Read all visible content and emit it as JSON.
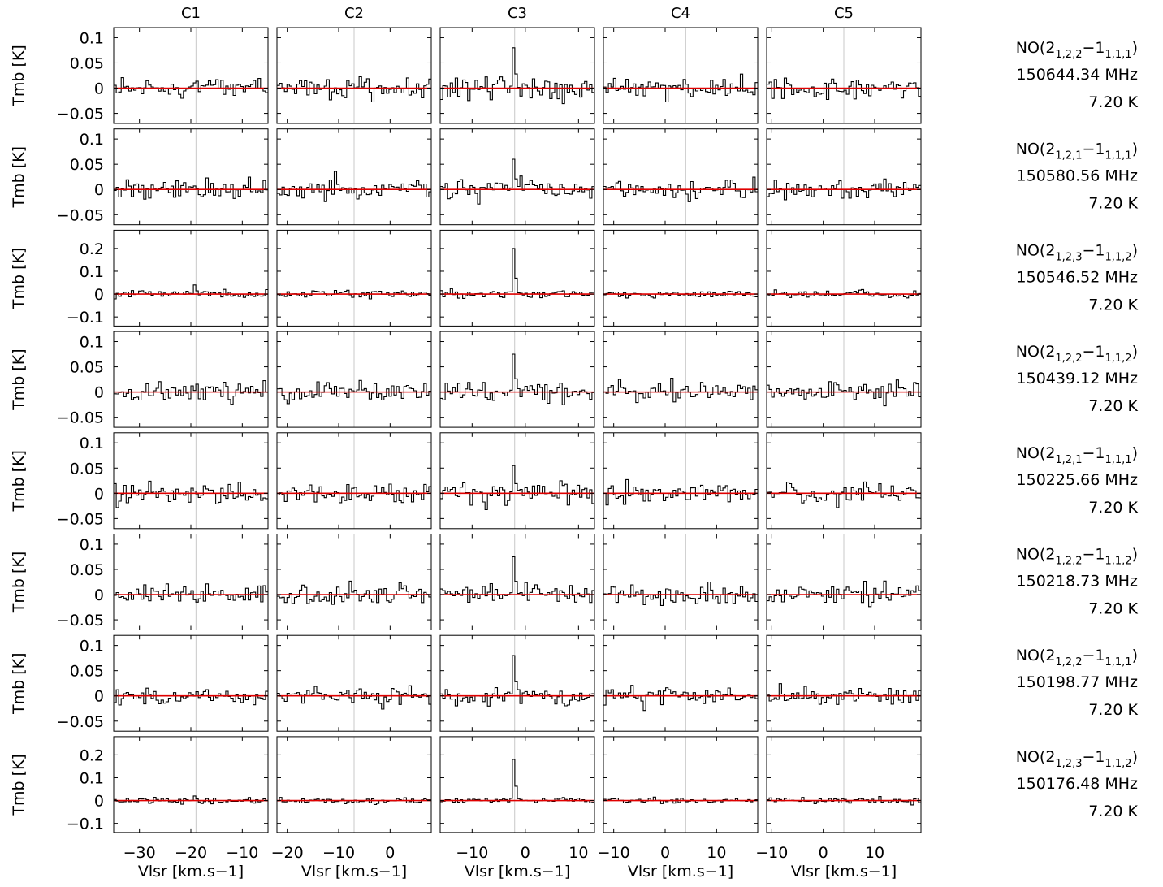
{
  "chart_data": {
    "type": "line",
    "style": "step-histogram spectra grid",
    "colors": {
      "spectrum": "#000000",
      "baseline": "#e00000",
      "marker": "#c8c8c8",
      "frame": "#000000"
    },
    "columns": [
      {
        "label": "C1",
        "xlim": [
          -35,
          -5
        ],
        "xticks": [
          -30,
          -20,
          -10
        ],
        "marker_v": -19
      },
      {
        "label": "C2",
        "xlim": [
          -22,
          8
        ],
        "xticks": [
          -20,
          -10,
          0
        ],
        "marker_v": -7
      },
      {
        "label": "C3",
        "xlim": [
          -16,
          13
        ],
        "xticks": [
          -10,
          0,
          10
        ],
        "marker_v": -2
      },
      {
        "label": "C4",
        "xlim": [
          -12,
          18
        ],
        "xticks": [
          -10,
          0,
          10
        ],
        "marker_v": 4
      },
      {
        "label": "C5",
        "xlim": [
          -11,
          19
        ],
        "xticks": [
          -10,
          0,
          10
        ],
        "marker_v": 4
      }
    ],
    "xlabel": "Vlsr   [km.s−1]",
    "ylabel": "Tmb   [K]",
    "rows": [
      {
        "line": "NO(2",
        "sub_upper": "1,2,2",
        "dash": "−1",
        "sub_lower": "1,1,1",
        "close": ")",
        "freq": "150644.34 MHz",
        "temp": "7.20 K",
        "ylim": [
          -0.07,
          0.12
        ],
        "yticks": [
          0.1,
          0.05,
          0,
          -0.05
        ],
        "ytick_labels": [
          "0.1",
          "0.05",
          "0",
          "−0.05"
        ],
        "peaks": [
          0,
          0,
          0.08,
          0,
          0
        ],
        "noise": 0.012
      },
      {
        "line": "NO(2",
        "sub_upper": "1,2,1",
        "dash": "−1",
        "sub_lower": "1,1,1",
        "close": ")",
        "freq": "150580.56 MHz",
        "temp": "7.20 K",
        "ylim": [
          -0.07,
          0.12
        ],
        "yticks": [
          0.1,
          0.05,
          0,
          -0.05
        ],
        "ytick_labels": [
          "0.1",
          "0.05",
          "0",
          "−0.05"
        ],
        "peaks": [
          0,
          0,
          0.06,
          0,
          0
        ],
        "noise": 0.012
      },
      {
        "line": "NO(2",
        "sub_upper": "1,2,3",
        "dash": "−1",
        "sub_lower": "1,1,2",
        "close": ")",
        "freq": "150546.52 MHz",
        "temp": "7.20 K",
        "ylim": [
          -0.14,
          0.28
        ],
        "yticks": [
          0.2,
          0.1,
          0,
          -0.1
        ],
        "ytick_labels": [
          "0.2",
          "0.1",
          "0",
          "−0.1"
        ],
        "peaks": [
          0.04,
          0,
          0.2,
          0,
          0
        ],
        "noise": 0.01
      },
      {
        "line": "NO(2",
        "sub_upper": "1,2,2",
        "dash": "−1",
        "sub_lower": "1,1,2",
        "close": ")",
        "freq": "150439.12 MHz",
        "temp": "7.20 K",
        "ylim": [
          -0.07,
          0.12
        ],
        "yticks": [
          0.1,
          0.05,
          0,
          -0.05
        ],
        "ytick_labels": [
          "0.1",
          "0.05",
          "0",
          "−0.05"
        ],
        "peaks": [
          0,
          0,
          0.075,
          0,
          0
        ],
        "noise": 0.012
      },
      {
        "line": "NO(2",
        "sub_upper": "1,2,1",
        "dash": "−1",
        "sub_lower": "1,1,1",
        "close": ")",
        "freq": "150225.66 MHz",
        "temp": "7.20 K",
        "ylim": [
          -0.07,
          0.12
        ],
        "yticks": [
          0.1,
          0.05,
          0,
          -0.05
        ],
        "ytick_labels": [
          "0.1",
          "0.05",
          "0",
          "−0.05"
        ],
        "peaks": [
          0,
          0,
          0.055,
          0,
          0
        ],
        "noise": 0.012
      },
      {
        "line": "NO(2",
        "sub_upper": "1,2,2",
        "dash": "−1",
        "sub_lower": "1,1,2",
        "close": ")",
        "freq": "150218.73 MHz",
        "temp": "7.20 K",
        "ylim": [
          -0.07,
          0.12
        ],
        "yticks": [
          0.1,
          0.05,
          0,
          -0.05
        ],
        "ytick_labels": [
          "0.1",
          "0.05",
          "0",
          "−0.05"
        ],
        "peaks": [
          0,
          0,
          0.075,
          0,
          0
        ],
        "noise": 0.012
      },
      {
        "line": "NO(2",
        "sub_upper": "1,2,2",
        "dash": "−1",
        "sub_lower": "1,1,1",
        "close": ")",
        "freq": "150198.77 MHz",
        "temp": "7.20 K",
        "ylim": [
          -0.07,
          0.12
        ],
        "yticks": [
          0.1,
          0.05,
          0,
          -0.05
        ],
        "ytick_labels": [
          "0.1",
          "0.05",
          "0",
          "−0.05"
        ],
        "peaks": [
          0,
          0,
          0.08,
          0,
          0
        ],
        "noise": 0.01
      },
      {
        "line": "NO(2",
        "sub_upper": "1,2,3",
        "dash": "−1",
        "sub_lower": "1,1,2",
        "close": ")",
        "freq": "150176.48 MHz",
        "temp": "7.20 K",
        "ylim": [
          -0.14,
          0.28
        ],
        "yticks": [
          0.2,
          0.1,
          0,
          -0.1
        ],
        "ytick_labels": [
          "0.2",
          "0.1",
          "0",
          "−0.1"
        ],
        "peaks": [
          0.02,
          0,
          0.18,
          0,
          0
        ],
        "noise": 0.008
      }
    ]
  }
}
